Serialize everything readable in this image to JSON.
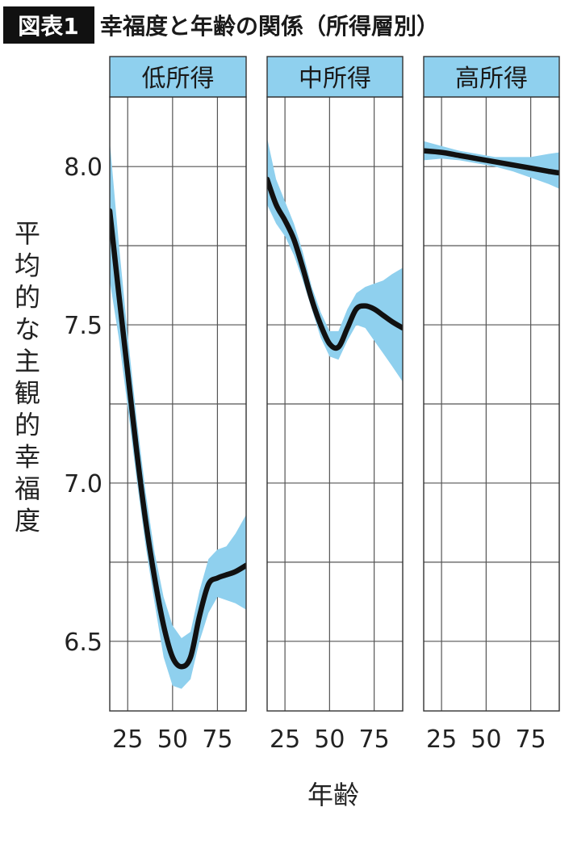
{
  "header": {
    "tag": "図表1",
    "title": "幸福度と年齢の関係（所得層別）",
    "tag_bg": "#111111"
  },
  "chart_data": {
    "type": "line",
    "ylabel": "平均的な主観的幸福度",
    "xlabel": "年齢",
    "ylim": [
      6.28,
      8.22
    ],
    "yticks": [
      6.5,
      7.0,
      7.5,
      8.0
    ],
    "ygrid": [
      6.75,
      7.25,
      7.75
    ],
    "xlim": [
      15,
      91
    ],
    "xticks": [
      25,
      50,
      75
    ],
    "grid": true,
    "colors": {
      "line": "#111111",
      "band": "#8fd0ee",
      "strip": "#8fd0ee"
    },
    "panels": [
      {
        "name": "低所得",
        "x": [
          15,
          20,
          25,
          30,
          35,
          40,
          45,
          50,
          55,
          60,
          65,
          70,
          75,
          80,
          85,
          91
        ],
        "y": [
          7.86,
          7.6,
          7.35,
          7.1,
          6.88,
          6.7,
          6.55,
          6.45,
          6.42,
          6.45,
          6.58,
          6.68,
          6.7,
          6.71,
          6.72,
          6.74
        ],
        "lower": [
          7.64,
          7.46,
          7.24,
          7.01,
          6.8,
          6.62,
          6.45,
          6.36,
          6.35,
          6.38,
          6.5,
          6.59,
          6.64,
          6.63,
          6.62,
          6.6
        ],
        "upper": [
          8.08,
          7.76,
          7.47,
          7.2,
          6.97,
          6.78,
          6.64,
          6.55,
          6.51,
          6.53,
          6.66,
          6.76,
          6.79,
          6.8,
          6.84,
          6.9
        ]
      },
      {
        "name": "中所得",
        "x": [
          15,
          20,
          25,
          30,
          35,
          40,
          45,
          50,
          55,
          60,
          65,
          70,
          75,
          80,
          85,
          91
        ],
        "y": [
          7.96,
          7.88,
          7.83,
          7.77,
          7.68,
          7.58,
          7.5,
          7.44,
          7.43,
          7.49,
          7.55,
          7.56,
          7.55,
          7.53,
          7.51,
          7.49
        ],
        "lower": [
          7.88,
          7.82,
          7.78,
          7.72,
          7.64,
          7.55,
          7.46,
          7.4,
          7.39,
          7.45,
          7.5,
          7.49,
          7.45,
          7.41,
          7.37,
          7.32
        ],
        "upper": [
          8.09,
          7.96,
          7.89,
          7.82,
          7.73,
          7.62,
          7.54,
          7.48,
          7.48,
          7.55,
          7.6,
          7.62,
          7.63,
          7.64,
          7.66,
          7.68
        ]
      },
      {
        "name": "高所得",
        "x": [
          15,
          25,
          35,
          45,
          55,
          65,
          75,
          85,
          91
        ],
        "y": [
          8.05,
          8.045,
          8.035,
          8.025,
          8.015,
          8.005,
          7.995,
          7.985,
          7.98
        ],
        "lower": [
          8.02,
          8.025,
          8.02,
          8.01,
          8.0,
          7.985,
          7.965,
          7.945,
          7.93
        ],
        "upper": [
          8.08,
          8.065,
          8.05,
          8.04,
          8.03,
          8.03,
          8.03,
          8.04,
          8.045
        ]
      }
    ]
  }
}
